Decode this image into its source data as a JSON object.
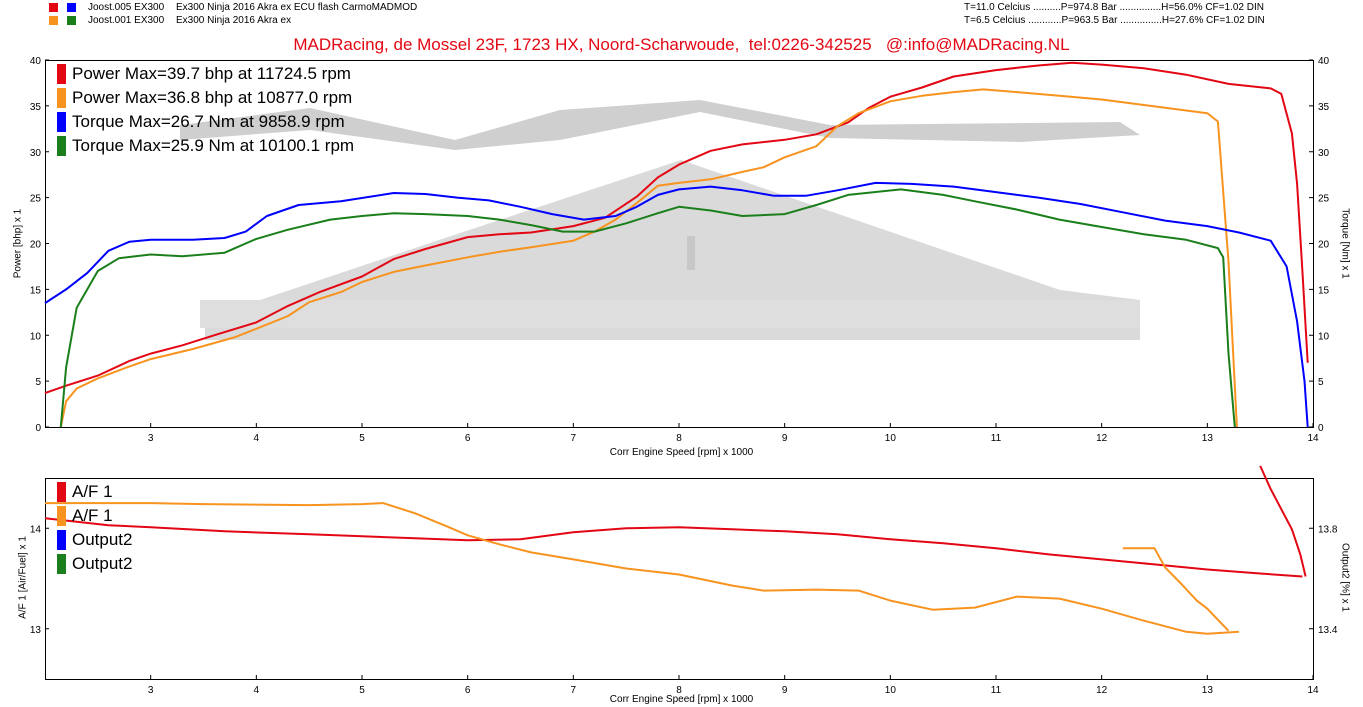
{
  "header": {
    "runs": [
      {
        "label": "Joost.005 EX300",
        "desc": "Ex300 Ninja 2016 Akra ex ECU flash CarmoMADMOD",
        "conditions": "T=11.0 Celcius ..........P=974.8 Bar ...............H=56.0% CF=1.02 DIN",
        "colors": [
          "#e30613",
          "#0000ff"
        ]
      },
      {
        "label": "Joost.001 EX300",
        "desc": "Ex300 Ninja 2016 Akra ex",
        "conditions": "T=6.5 Celcius ............P=963.5 Bar ...............H=27.6% CF=1.02 DIN",
        "colors": [
          "#f7931e",
          "#1a7f1a"
        ]
      }
    ],
    "banner": "MADRacing, de Mossel 23F, 1723 HX, Noord-Scharwoude,  tel:0226-342525   @:info@MADRacing.NL"
  },
  "chart_data": [
    {
      "type": "line",
      "xlabel": "Corr Engine Speed [rpm] x 1000",
      "ylabel_left": "Power [bhp] x 1",
      "ylabel_right": "Torque [Nm] x 1",
      "xlim": [
        2.0,
        14.0
      ],
      "ylim_left": [
        0,
        40
      ],
      "ylim_right": [
        0,
        40
      ],
      "x_ticks": [
        "3",
        "4",
        "5",
        "6",
        "7",
        "8",
        "9",
        "10",
        "11",
        "12",
        "13",
        "14"
      ],
      "y_ticks_left": [
        "0",
        "5",
        "10",
        "15",
        "20",
        "25",
        "30",
        "35",
        "40"
      ],
      "y_ticks_right": [
        "0",
        "5",
        "10",
        "15",
        "20",
        "25",
        "30",
        "35",
        "40"
      ],
      "legend": [
        {
          "text": "Power  Max=39.7 bhp at 11724.5 rpm",
          "color": "#e30613"
        },
        {
          "text": "Power  Max=36.8 bhp at 10877.0 rpm",
          "color": "#f7931e"
        },
        {
          "text": "Torque  Max=26.7 Nm at 9858.9 rpm",
          "color": "#0000ff"
        },
        {
          "text": "Torque  Max=25.9 Nm at 10100.1 rpm",
          "color": "#1a7f1a"
        }
      ],
      "series": [
        {
          "color": "#e30613",
          "axis": "left",
          "points": [
            [
              2.0,
              3.7
            ],
            [
              2.2,
              4.5
            ],
            [
              2.5,
              5.6
            ],
            [
              2.8,
              7.2
            ],
            [
              3.0,
              8.0
            ],
            [
              3.3,
              8.9
            ],
            [
              3.6,
              10.0
            ],
            [
              4.0,
              11.4
            ],
            [
              4.3,
              13.2
            ],
            [
              4.6,
              14.7
            ],
            [
              5.0,
              16.4
            ],
            [
              5.3,
              18.3
            ],
            [
              5.6,
              19.4
            ],
            [
              6.0,
              20.7
            ],
            [
              6.3,
              21.0
            ],
            [
              6.6,
              21.2
            ],
            [
              7.0,
              21.9
            ],
            [
              7.3,
              22.8
            ],
            [
              7.6,
              25.1
            ],
            [
              7.8,
              27.2
            ],
            [
              8.0,
              28.6
            ],
            [
              8.3,
              30.1
            ],
            [
              8.6,
              30.8
            ],
            [
              9.0,
              31.3
            ],
            [
              9.3,
              31.9
            ],
            [
              9.6,
              33.2
            ],
            [
              9.8,
              34.8
            ],
            [
              10.0,
              36.0
            ],
            [
              10.3,
              37.0
            ],
            [
              10.6,
              38.2
            ],
            [
              11.0,
              38.9
            ],
            [
              11.4,
              39.4
            ],
            [
              11.72,
              39.7
            ],
            [
              12.0,
              39.5
            ],
            [
              12.4,
              39.1
            ],
            [
              12.8,
              38.4
            ],
            [
              13.2,
              37.4
            ],
            [
              13.6,
              36.9
            ],
            [
              13.7,
              36.3
            ],
            [
              13.8,
              32.0
            ],
            [
              13.85,
              26.5
            ],
            [
              13.9,
              17.0
            ],
            [
              13.95,
              7.0
            ]
          ]
        },
        {
          "color": "#f7931e",
          "axis": "left",
          "points": [
            [
              2.15,
              0.0
            ],
            [
              2.2,
              2.8
            ],
            [
              2.3,
              4.2
            ],
            [
              2.5,
              5.3
            ],
            [
              2.8,
              6.6
            ],
            [
              3.0,
              7.4
            ],
            [
              3.4,
              8.5
            ],
            [
              3.8,
              9.8
            ],
            [
              4.0,
              10.7
            ],
            [
              4.3,
              12.1
            ],
            [
              4.5,
              13.6
            ],
            [
              4.8,
              14.7
            ],
            [
              5.0,
              15.8
            ],
            [
              5.3,
              16.9
            ],
            [
              5.6,
              17.6
            ],
            [
              6.0,
              18.5
            ],
            [
              6.3,
              19.1
            ],
            [
              6.6,
              19.6
            ],
            [
              7.0,
              20.3
            ],
            [
              7.2,
              21.3
            ],
            [
              7.4,
              22.6
            ],
            [
              7.6,
              24.4
            ],
            [
              7.8,
              26.3
            ],
            [
              8.0,
              26.6
            ],
            [
              8.3,
              27.0
            ],
            [
              8.6,
              27.8
            ],
            [
              8.8,
              28.3
            ],
            [
              9.0,
              29.4
            ],
            [
              9.3,
              30.6
            ],
            [
              9.5,
              32.8
            ],
            [
              9.7,
              34.2
            ],
            [
              10.0,
              35.5
            ],
            [
              10.3,
              36.1
            ],
            [
              10.6,
              36.5
            ],
            [
              10.88,
              36.8
            ],
            [
              11.2,
              36.5
            ],
            [
              11.6,
              36.1
            ],
            [
              12.0,
              35.7
            ],
            [
              12.4,
              35.1
            ],
            [
              12.8,
              34.5
            ],
            [
              13.0,
              34.2
            ],
            [
              13.1,
              33.3
            ],
            [
              13.2,
              18.0
            ],
            [
              13.28,
              0.0
            ]
          ]
        },
        {
          "color": "#0000ff",
          "axis": "right",
          "points": [
            [
              2.0,
              13.5
            ],
            [
              2.2,
              15.0
            ],
            [
              2.4,
              16.8
            ],
            [
              2.6,
              19.2
            ],
            [
              2.8,
              20.2
            ],
            [
              3.0,
              20.4
            ],
            [
              3.4,
              20.4
            ],
            [
              3.7,
              20.6
            ],
            [
              3.9,
              21.3
            ],
            [
              4.1,
              23.0
            ],
            [
              4.4,
              24.2
            ],
            [
              4.8,
              24.6
            ],
            [
              5.3,
              25.5
            ],
            [
              5.6,
              25.4
            ],
            [
              5.9,
              25.0
            ],
            [
              6.2,
              24.7
            ],
            [
              6.5,
              24.0
            ],
            [
              6.8,
              23.2
            ],
            [
              7.1,
              22.6
            ],
            [
              7.4,
              23.0
            ],
            [
              7.6,
              24.0
            ],
            [
              7.8,
              25.3
            ],
            [
              8.0,
              25.9
            ],
            [
              8.3,
              26.2
            ],
            [
              8.6,
              25.8
            ],
            [
              8.9,
              25.2
            ],
            [
              9.2,
              25.2
            ],
            [
              9.5,
              25.8
            ],
            [
              9.86,
              26.6
            ],
            [
              10.2,
              26.5
            ],
            [
              10.6,
              26.2
            ],
            [
              11.0,
              25.6
            ],
            [
              11.4,
              25.0
            ],
            [
              11.8,
              24.3
            ],
            [
              12.2,
              23.4
            ],
            [
              12.6,
              22.5
            ],
            [
              13.0,
              21.9
            ],
            [
              13.3,
              21.2
            ],
            [
              13.6,
              20.3
            ],
            [
              13.75,
              17.5
            ],
            [
              13.85,
              11.5
            ],
            [
              13.92,
              5.0
            ],
            [
              13.95,
              0.0
            ]
          ]
        },
        {
          "color": "#1a7f1a",
          "axis": "right",
          "points": [
            [
              2.15,
              0.0
            ],
            [
              2.2,
              6.5
            ],
            [
              2.3,
              13.0
            ],
            [
              2.5,
              17.0
            ],
            [
              2.7,
              18.4
            ],
            [
              3.0,
              18.8
            ],
            [
              3.3,
              18.6
            ],
            [
              3.7,
              19.0
            ],
            [
              4.0,
              20.5
            ],
            [
              4.3,
              21.5
            ],
            [
              4.7,
              22.6
            ],
            [
              5.0,
              23.0
            ],
            [
              5.3,
              23.3
            ],
            [
              5.6,
              23.2
            ],
            [
              6.0,
              23.0
            ],
            [
              6.3,
              22.6
            ],
            [
              6.6,
              22.0
            ],
            [
              6.9,
              21.3
            ],
            [
              7.2,
              21.3
            ],
            [
              7.5,
              22.2
            ],
            [
              7.8,
              23.3
            ],
            [
              8.0,
              24.0
            ],
            [
              8.3,
              23.6
            ],
            [
              8.6,
              23.0
            ],
            [
              9.0,
              23.2
            ],
            [
              9.3,
              24.2
            ],
            [
              9.6,
              25.3
            ],
            [
              10.1,
              25.9
            ],
            [
              10.5,
              25.3
            ],
            [
              10.8,
              24.6
            ],
            [
              11.2,
              23.7
            ],
            [
              11.6,
              22.6
            ],
            [
              12.0,
              21.8
            ],
            [
              12.4,
              21.0
            ],
            [
              12.8,
              20.4
            ],
            [
              13.1,
              19.5
            ],
            [
              13.15,
              18.5
            ],
            [
              13.2,
              8.0
            ],
            [
              13.26,
              0.0
            ]
          ]
        }
      ]
    },
    {
      "type": "line",
      "xlabel": "Corr Engine Speed [rpm] x 1000",
      "ylabel_left": "A/F 1 [Air/Fuel] x 1",
      "ylabel_right": "Output2 [%] x 1",
      "xlim": [
        2.0,
        14.0
      ],
      "ylim_left": [
        12.5,
        14.5
      ],
      "ylim_right": [
        13.2,
        14.0
      ],
      "x_ticks": [
        "3",
        "4",
        "5",
        "6",
        "7",
        "8",
        "9",
        "10",
        "11",
        "12",
        "13",
        "14"
      ],
      "y_ticks_left": [
        "13",
        "14"
      ],
      "y_ticks_right": [
        "13.4",
        "13.8"
      ],
      "legend": [
        {
          "text": "A/F 1",
          "color": "#e30613"
        },
        {
          "text": "A/F 1",
          "color": "#f7931e"
        },
        {
          "text": "Output2",
          "color": "#0000ff"
        },
        {
          "text": "Output2",
          "color": "#1a7f1a"
        }
      ],
      "series": [
        {
          "color": "#e30613",
          "axis": "left",
          "points": [
            [
              2.0,
              14.1
            ],
            [
              2.6,
              14.03
            ],
            [
              3.0,
              14.01
            ],
            [
              3.7,
              13.97
            ],
            [
              4.5,
              13.94
            ],
            [
              5.5,
              13.9
            ],
            [
              6.0,
              13.88
            ],
            [
              6.5,
              13.89
            ],
            [
              7.0,
              13.96
            ],
            [
              7.5,
              14.0
            ],
            [
              8.0,
              14.01
            ],
            [
              8.5,
              13.99
            ],
            [
              9.0,
              13.97
            ],
            [
              9.5,
              13.94
            ],
            [
              10.0,
              13.89
            ],
            [
              10.5,
              13.85
            ],
            [
              11.0,
              13.8
            ],
            [
              11.5,
              13.74
            ],
            [
              12.0,
              13.69
            ],
            [
              12.5,
              13.64
            ],
            [
              13.0,
              13.59
            ],
            [
              13.5,
              13.55
            ],
            [
              13.9,
              13.52
            ]
          ]
        },
        {
          "color": "#e30613",
          "axis": "left",
          "points": [
            [
              13.5,
              14.62
            ],
            [
              13.6,
              14.39
            ],
            [
              13.8,
              13.99
            ],
            [
              13.88,
              13.74
            ],
            [
              13.93,
              13.52
            ]
          ]
        },
        {
          "color": "#f7931e",
          "axis": "left",
          "points": [
            [
              2.0,
              14.25
            ],
            [
              2.5,
              14.25
            ],
            [
              3.0,
              14.25
            ],
            [
              3.5,
              14.24
            ],
            [
              4.5,
              14.23
            ],
            [
              5.0,
              14.24
            ],
            [
              5.2,
              14.25
            ],
            [
              5.5,
              14.15
            ],
            [
              5.8,
              14.02
            ],
            [
              6.0,
              13.93
            ],
            [
              6.3,
              13.84
            ],
            [
              6.6,
              13.76
            ],
            [
              7.0,
              13.69
            ],
            [
              7.5,
              13.6
            ],
            [
              8.0,
              13.54
            ],
            [
              8.5,
              13.43
            ],
            [
              8.8,
              13.38
            ],
            [
              9.3,
              13.39
            ],
            [
              9.7,
              13.38
            ],
            [
              10.0,
              13.28
            ],
            [
              10.4,
              13.19
            ],
            [
              10.8,
              13.21
            ],
            [
              11.2,
              13.32
            ],
            [
              11.6,
              13.3
            ],
            [
              12.0,
              13.2
            ],
            [
              12.4,
              13.08
            ],
            [
              12.8,
              12.97
            ],
            [
              13.0,
              12.95
            ],
            [
              13.3,
              12.97
            ]
          ]
        },
        {
          "color": "#f7931e",
          "axis": "left",
          "points": [
            [
              12.2,
              13.8
            ],
            [
              12.5,
              13.8
            ],
            [
              12.6,
              13.61
            ],
            [
              12.75,
              13.45
            ],
            [
              12.9,
              13.28
            ],
            [
              13.0,
              13.2
            ],
            [
              13.2,
              12.98
            ]
          ]
        }
      ]
    }
  ]
}
